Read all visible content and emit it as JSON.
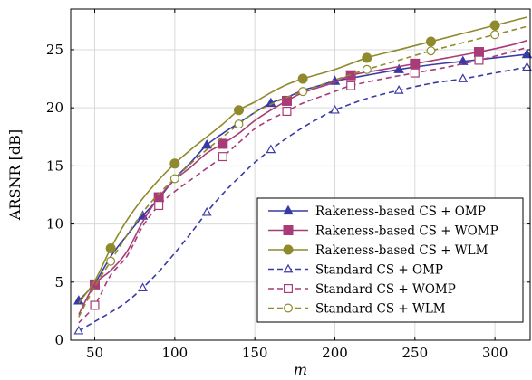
{
  "chart_data": {
    "type": "line",
    "xlabel": "m",
    "ylabel": "ARSNR [dB]",
    "xlim": [
      35,
      322
    ],
    "ylim": [
      0,
      28.5
    ],
    "xticks": [
      50,
      100,
      150,
      200,
      250,
      300
    ],
    "yticks": [
      0,
      5,
      10,
      15,
      20,
      25
    ],
    "grid": true,
    "legend_position": "bottom-right",
    "series": [
      {
        "name": "Rakeness-based CS + OMP",
        "color": "#3a3aa6",
        "dash": "solid",
        "marker": "triangle-filled",
        "x": [
          40,
          50,
          60,
          70,
          80,
          90,
          100,
          110,
          120,
          130,
          140,
          150,
          160,
          170,
          180,
          190,
          200,
          220,
          240,
          260,
          280,
          300,
          320
        ],
        "y": [
          3.4,
          4.9,
          7.2,
          9.0,
          10.7,
          12.2,
          13.9,
          15.3,
          16.8,
          17.8,
          18.7,
          19.6,
          20.4,
          20.9,
          21.5,
          21.9,
          22.3,
          22.8,
          23.3,
          23.7,
          24.0,
          24.3,
          24.6
        ],
        "marker_x": [
          40,
          80,
          120,
          160,
          200,
          240,
          280,
          320
        ]
      },
      {
        "name": "Rakeness-based CS + WOMP",
        "color": "#a83b78",
        "dash": "solid",
        "marker": "square-filled",
        "x": [
          40,
          50,
          60,
          70,
          80,
          90,
          100,
          110,
          120,
          130,
          140,
          150,
          160,
          170,
          180,
          200,
          210,
          230,
          250,
          270,
          290,
          310,
          320
        ],
        "y": [
          2.2,
          4.8,
          6.0,
          7.6,
          10.2,
          12.3,
          13.8,
          14.9,
          16.1,
          16.9,
          17.8,
          18.9,
          19.8,
          20.6,
          21.3,
          22.2,
          22.8,
          23.3,
          23.8,
          24.3,
          24.8,
          25.4,
          25.8
        ],
        "marker_x": [
          50,
          90,
          130,
          170,
          210,
          250,
          290
        ]
      },
      {
        "name": "Rakeness-based CS + WLM",
        "color": "#8f8a2c",
        "dash": "solid",
        "marker": "circle-filled",
        "x": [
          40,
          50,
          60,
          70,
          80,
          90,
          100,
          110,
          120,
          130,
          140,
          150,
          160,
          170,
          180,
          200,
          220,
          240,
          260,
          280,
          300,
          320
        ],
        "y": [
          3.2,
          5.1,
          7.9,
          10.3,
          12.2,
          13.8,
          15.2,
          16.4,
          17.5,
          18.6,
          19.8,
          20.5,
          21.3,
          22.0,
          22.5,
          23.3,
          24.3,
          25.0,
          25.7,
          26.4,
          27.1,
          27.8
        ],
        "marker_x": [
          60,
          100,
          140,
          180,
          220,
          260,
          300
        ]
      },
      {
        "name": "Standard CS + OMP",
        "color": "#3a3aa6",
        "dash": "dashed",
        "marker": "triangle-open",
        "x": [
          40,
          50,
          60,
          70,
          80,
          90,
          100,
          110,
          120,
          130,
          140,
          150,
          160,
          170,
          180,
          190,
          200,
          220,
          240,
          260,
          280,
          300,
          320
        ],
        "y": [
          0.8,
          1.6,
          2.4,
          3.3,
          4.5,
          5.9,
          7.5,
          9.2,
          11.0,
          12.6,
          14.0,
          15.3,
          16.4,
          17.4,
          18.3,
          19.1,
          19.8,
          20.8,
          21.5,
          22.1,
          22.5,
          23.0,
          23.5
        ],
        "marker_x": [
          40,
          80,
          120,
          160,
          200,
          240,
          280,
          320
        ]
      },
      {
        "name": "Standard CS + WOMP",
        "color": "#a83b78",
        "dash": "dashed",
        "marker": "square-open",
        "x": [
          40,
          50,
          60,
          70,
          80,
          90,
          100,
          110,
          120,
          130,
          140,
          150,
          160,
          170,
          180,
          200,
          210,
          230,
          250,
          270,
          290,
          310,
          320
        ],
        "y": [
          1.5,
          3.0,
          5.6,
          7.2,
          9.8,
          11.6,
          12.8,
          13.8,
          14.8,
          15.8,
          17.0,
          18.2,
          19.0,
          19.7,
          20.4,
          21.4,
          21.9,
          22.5,
          23.0,
          23.5,
          24.1,
          24.8,
          25.2
        ],
        "marker_x": [
          50,
          90,
          130,
          170,
          210,
          250,
          290
        ]
      },
      {
        "name": "Standard CS + WLM",
        "color": "#8f8a2c",
        "dash": "dashed",
        "marker": "circle-open",
        "x": [
          40,
          50,
          60,
          70,
          80,
          90,
          100,
          110,
          120,
          130,
          140,
          150,
          160,
          170,
          180,
          200,
          220,
          240,
          260,
          280,
          300,
          320
        ],
        "y": [
          2.0,
          4.6,
          6.8,
          9.0,
          11.0,
          12.6,
          13.9,
          15.2,
          16.4,
          17.5,
          18.6,
          19.6,
          20.3,
          20.9,
          21.4,
          22.4,
          23.3,
          24.1,
          24.9,
          25.6,
          26.3,
          27.0
        ],
        "marker_x": [
          60,
          100,
          140,
          180,
          220,
          260,
          300
        ]
      }
    ]
  }
}
